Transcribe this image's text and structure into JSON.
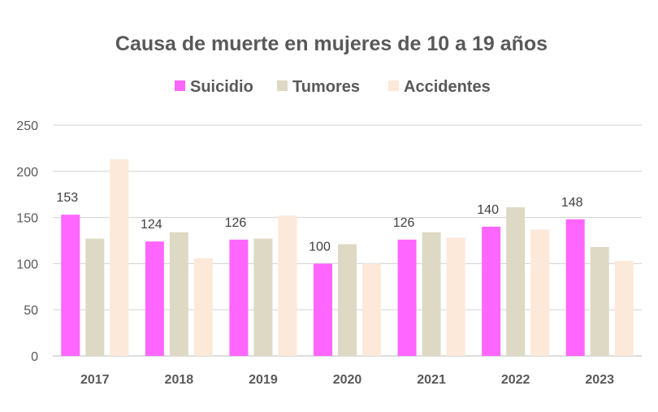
{
  "chart_data": {
    "type": "bar",
    "title": "Causa de muerte en mujeres de 10 a 19 años",
    "xlabel": "",
    "ylabel": "",
    "categories": [
      "2017",
      "2018",
      "2019",
      "2020",
      "2021",
      "2022",
      "2023"
    ],
    "series": [
      {
        "name": "Suicidio",
        "color": "#FF66FF",
        "values": [
          153,
          124,
          126,
          100,
          126,
          140,
          148
        ],
        "data_labels": true
      },
      {
        "name": "Tumores",
        "color": "#DDD9C4",
        "values": [
          127,
          134,
          127,
          121,
          134,
          161,
          118
        ],
        "data_labels": false
      },
      {
        "name": "Accidentes",
        "color": "#FCE9DA",
        "values": [
          213,
          106,
          152,
          100,
          128,
          137,
          103
        ],
        "data_labels": false
      }
    ],
    "ylim": [
      0,
      250
    ],
    "yticks": [
      0,
      50,
      100,
      150,
      200,
      250
    ],
    "grid": true,
    "legend": "top-center"
  }
}
